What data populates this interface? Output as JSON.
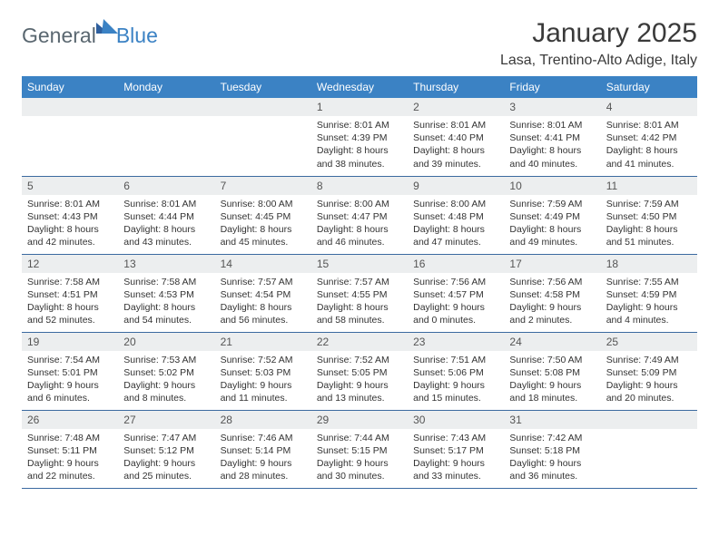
{
  "brand": {
    "general": "General",
    "blue": "Blue"
  },
  "title": "January 2025",
  "location": "Lasa, Trentino-Alto Adige, Italy",
  "colors": {
    "header_bg": "#3b82c4",
    "header_fg": "#ffffff",
    "daynum_bg": "#eceeef",
    "border": "#3b6aa0",
    "logo_gray": "#5a6770",
    "logo_blue": "#3b82c4"
  },
  "day_headers": [
    "Sunday",
    "Monday",
    "Tuesday",
    "Wednesday",
    "Thursday",
    "Friday",
    "Saturday"
  ],
  "weeks": [
    [
      {
        "blank": true
      },
      {
        "blank": true
      },
      {
        "blank": true
      },
      {
        "n": "1",
        "sunrise": "8:01 AM",
        "sunset": "4:39 PM",
        "dl": "8 hours and 38 minutes."
      },
      {
        "n": "2",
        "sunrise": "8:01 AM",
        "sunset": "4:40 PM",
        "dl": "8 hours and 39 minutes."
      },
      {
        "n": "3",
        "sunrise": "8:01 AM",
        "sunset": "4:41 PM",
        "dl": "8 hours and 40 minutes."
      },
      {
        "n": "4",
        "sunrise": "8:01 AM",
        "sunset": "4:42 PM",
        "dl": "8 hours and 41 minutes."
      }
    ],
    [
      {
        "n": "5",
        "sunrise": "8:01 AM",
        "sunset": "4:43 PM",
        "dl": "8 hours and 42 minutes."
      },
      {
        "n": "6",
        "sunrise": "8:01 AM",
        "sunset": "4:44 PM",
        "dl": "8 hours and 43 minutes."
      },
      {
        "n": "7",
        "sunrise": "8:00 AM",
        "sunset": "4:45 PM",
        "dl": "8 hours and 45 minutes."
      },
      {
        "n": "8",
        "sunrise": "8:00 AM",
        "sunset": "4:47 PM",
        "dl": "8 hours and 46 minutes."
      },
      {
        "n": "9",
        "sunrise": "8:00 AM",
        "sunset": "4:48 PM",
        "dl": "8 hours and 47 minutes."
      },
      {
        "n": "10",
        "sunrise": "7:59 AM",
        "sunset": "4:49 PM",
        "dl": "8 hours and 49 minutes."
      },
      {
        "n": "11",
        "sunrise": "7:59 AM",
        "sunset": "4:50 PM",
        "dl": "8 hours and 51 minutes."
      }
    ],
    [
      {
        "n": "12",
        "sunrise": "7:58 AM",
        "sunset": "4:51 PM",
        "dl": "8 hours and 52 minutes."
      },
      {
        "n": "13",
        "sunrise": "7:58 AM",
        "sunset": "4:53 PM",
        "dl": "8 hours and 54 minutes."
      },
      {
        "n": "14",
        "sunrise": "7:57 AM",
        "sunset": "4:54 PM",
        "dl": "8 hours and 56 minutes."
      },
      {
        "n": "15",
        "sunrise": "7:57 AM",
        "sunset": "4:55 PM",
        "dl": "8 hours and 58 minutes."
      },
      {
        "n": "16",
        "sunrise": "7:56 AM",
        "sunset": "4:57 PM",
        "dl": "9 hours and 0 minutes."
      },
      {
        "n": "17",
        "sunrise": "7:56 AM",
        "sunset": "4:58 PM",
        "dl": "9 hours and 2 minutes."
      },
      {
        "n": "18",
        "sunrise": "7:55 AM",
        "sunset": "4:59 PM",
        "dl": "9 hours and 4 minutes."
      }
    ],
    [
      {
        "n": "19",
        "sunrise": "7:54 AM",
        "sunset": "5:01 PM",
        "dl": "9 hours and 6 minutes."
      },
      {
        "n": "20",
        "sunrise": "7:53 AM",
        "sunset": "5:02 PM",
        "dl": "9 hours and 8 minutes."
      },
      {
        "n": "21",
        "sunrise": "7:52 AM",
        "sunset": "5:03 PM",
        "dl": "9 hours and 11 minutes."
      },
      {
        "n": "22",
        "sunrise": "7:52 AM",
        "sunset": "5:05 PM",
        "dl": "9 hours and 13 minutes."
      },
      {
        "n": "23",
        "sunrise": "7:51 AM",
        "sunset": "5:06 PM",
        "dl": "9 hours and 15 minutes."
      },
      {
        "n": "24",
        "sunrise": "7:50 AM",
        "sunset": "5:08 PM",
        "dl": "9 hours and 18 minutes."
      },
      {
        "n": "25",
        "sunrise": "7:49 AM",
        "sunset": "5:09 PM",
        "dl": "9 hours and 20 minutes."
      }
    ],
    [
      {
        "n": "26",
        "sunrise": "7:48 AM",
        "sunset": "5:11 PM",
        "dl": "9 hours and 22 minutes."
      },
      {
        "n": "27",
        "sunrise": "7:47 AM",
        "sunset": "5:12 PM",
        "dl": "9 hours and 25 minutes."
      },
      {
        "n": "28",
        "sunrise": "7:46 AM",
        "sunset": "5:14 PM",
        "dl": "9 hours and 28 minutes."
      },
      {
        "n": "29",
        "sunrise": "7:44 AM",
        "sunset": "5:15 PM",
        "dl": "9 hours and 30 minutes."
      },
      {
        "n": "30",
        "sunrise": "7:43 AM",
        "sunset": "5:17 PM",
        "dl": "9 hours and 33 minutes."
      },
      {
        "n": "31",
        "sunrise": "7:42 AM",
        "sunset": "5:18 PM",
        "dl": "9 hours and 36 minutes."
      },
      {
        "blank": true
      }
    ]
  ],
  "labels": {
    "sunrise": "Sunrise:",
    "sunset": "Sunset:",
    "daylight": "Daylight:"
  }
}
